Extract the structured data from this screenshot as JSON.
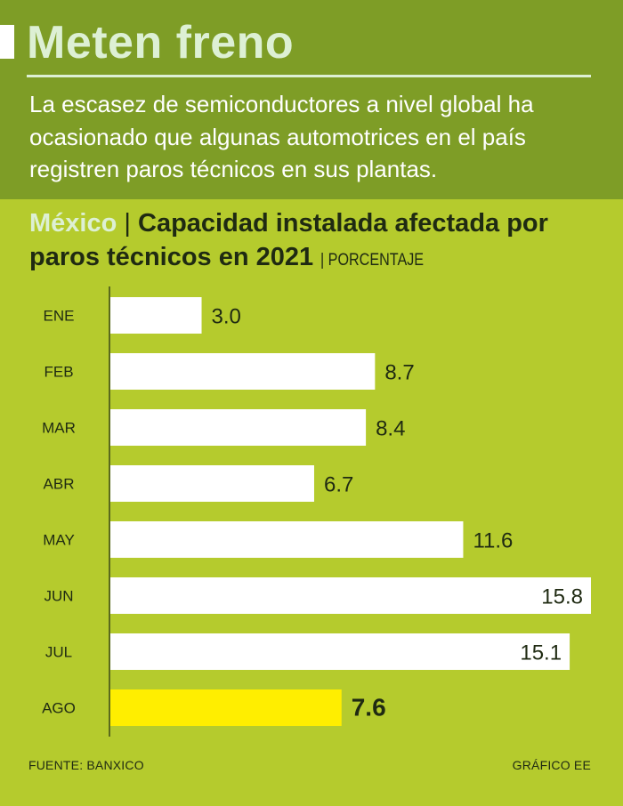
{
  "header": {
    "title": "Meten freno",
    "intro": "La escasez de semiconductores a nivel global ha ocasionado que algunas automotrices en el país registren paros técnicos en sus plantas."
  },
  "colors": {
    "header_bg": "#7e9d26",
    "page_bg": "#b5cb2d",
    "title_text": "#ddf0d4",
    "bar": "#ffffff",
    "bar_highlight": "#ffee00",
    "text_dark": "#1f2a12"
  },
  "chart_data": {
    "type": "bar",
    "orientation": "horizontal",
    "country": "México",
    "separator": "|",
    "title": "Capacidad instalada afectada por paros técnicos en 2021",
    "unit": "| PORCENTAJE",
    "categories": [
      "ENE",
      "FEB",
      "MAR",
      "ABR",
      "MAY",
      "JUN",
      "JUL",
      "AGO"
    ],
    "values": [
      3.0,
      8.7,
      8.4,
      6.7,
      11.6,
      15.8,
      15.1,
      7.6
    ],
    "value_labels": [
      "3.0",
      "8.7",
      "8.4",
      "6.7",
      "11.6",
      "15.8",
      "15.1",
      "7.6"
    ],
    "highlight_index": 7,
    "xlim": [
      0,
      15.8
    ],
    "grid": false
  },
  "footer": {
    "source": "FUENTE: BANXICO",
    "credit": "GRÁFICO EE"
  }
}
